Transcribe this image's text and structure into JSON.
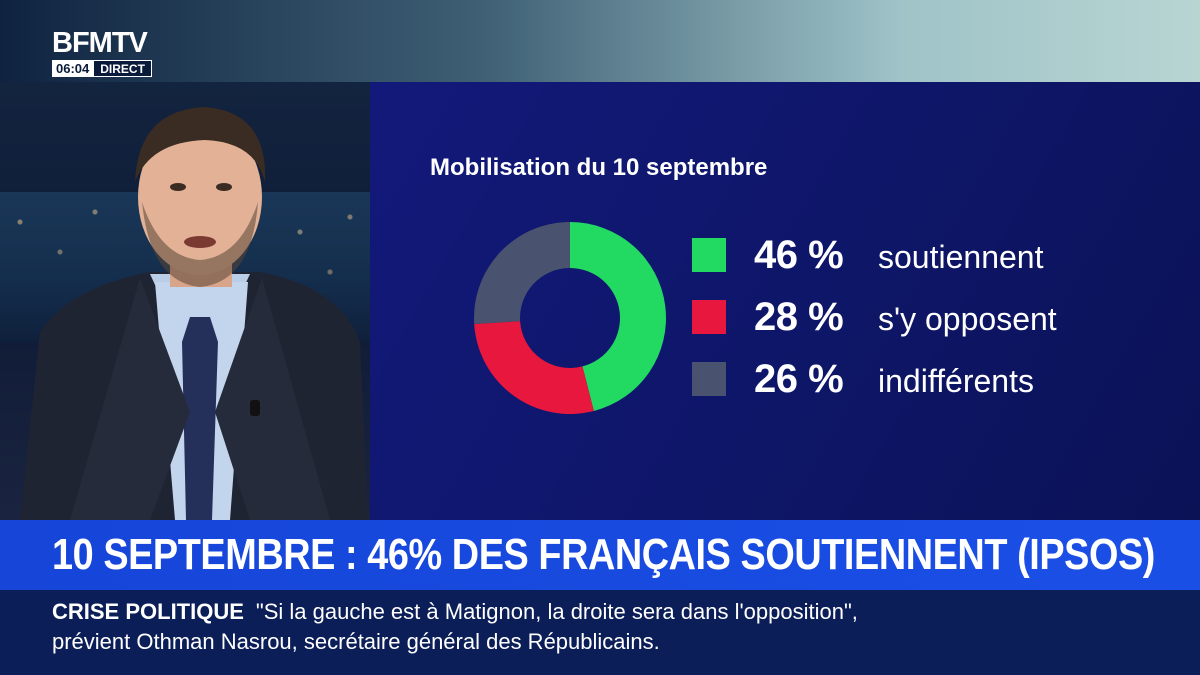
{
  "channel": {
    "logo": "BFMTV",
    "time": "06:04",
    "live_label": "DIRECT"
  },
  "chart_data": {
    "type": "pie",
    "title": "Mobilisation du 10 septembre",
    "slices": [
      {
        "label": "soutiennent",
        "value": 46,
        "display": "46 %",
        "color": "#22d962"
      },
      {
        "label": "s'y opposent",
        "value": 28,
        "display": "28 %",
        "color": "#e8173d"
      },
      {
        "label": "indifférents",
        "value": 26,
        "display": "26 %",
        "color": "#49526e"
      }
    ],
    "donut": true,
    "legend_placement": "right"
  },
  "headline": "10 SEPTEMBRE : 46% DES FRANÇAIS SOUTIENNENT (IPSOS)",
  "ticker": {
    "tag": "CRISE POLITIQUE",
    "line1": "\"Si la gauche est à Matignon, la droite sera dans l'opposition\",",
    "line2": "prévient Othman Nasrou, secrétaire général des Républicains."
  },
  "colors": {
    "panel_bg": "#12197a",
    "headline_bg": "#1a4fe6",
    "ticker_bg": "#0b1e57"
  }
}
